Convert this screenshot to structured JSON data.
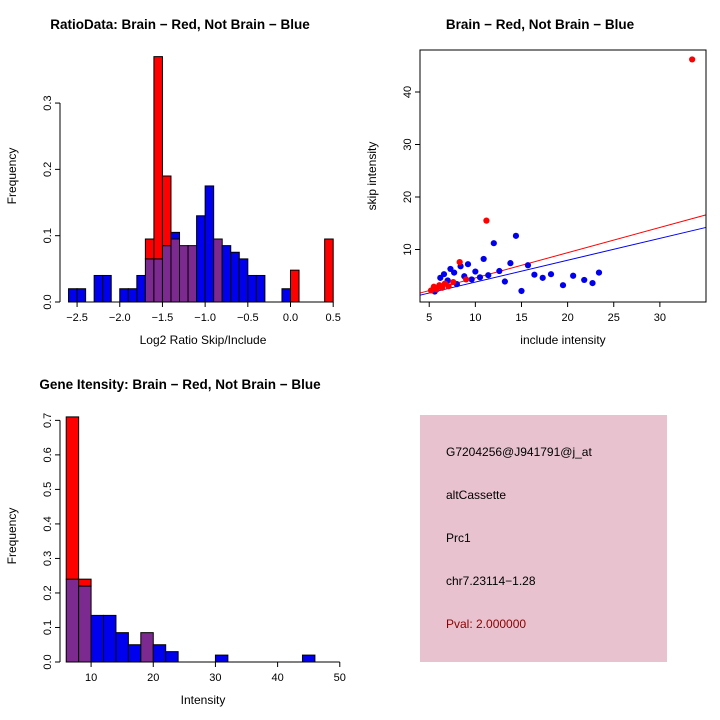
{
  "colors": {
    "red": "#FF0000",
    "blue": "#0000EE",
    "overlap": "#7D2A90",
    "axis": "#000000"
  },
  "chart_data": [
    {
      "id": "ratio-histogram",
      "type": "histogram",
      "title": "RatioData: Brain − Red, Not Brain − Blue",
      "xlabel": "Log2 Ratio Skip/Include",
      "ylabel": "Frequency",
      "xlim": [
        -2.7,
        0.65
      ],
      "ylim": [
        0,
        0.38
      ],
      "xticks": [
        -2.5,
        -2.0,
        -1.5,
        -1.0,
        -0.5,
        0.0,
        0.5
      ],
      "xtick_labels": [
        "−2.5",
        "−2.0",
        "−1.5",
        "−1.0",
        "−0.5",
        "0.0",
        "0.5"
      ],
      "yticks": [
        0.0,
        0.1,
        0.2,
        0.3
      ],
      "ytick_labels": [
        "0.0",
        "0.1",
        "0.2",
        "0.3"
      ],
      "bin_width": 0.1,
      "legend_note": "Brain = red, Not Brain = blue, overlap = purple",
      "series": [
        {
          "name": "Not Brain",
          "color": "blue",
          "bars": [
            [
              -2.6,
              0.02
            ],
            [
              -2.5,
              0.02
            ],
            [
              -2.3,
              0.04
            ],
            [
              -2.2,
              0.04
            ],
            [
              -2.0,
              0.02
            ],
            [
              -1.9,
              0.02
            ],
            [
              -1.8,
              0.04
            ],
            [
              -1.7,
              0.065
            ],
            [
              -1.6,
              0.065
            ],
            [
              -1.5,
              0.085
            ],
            [
              -1.4,
              0.105
            ],
            [
              -1.3,
              0.085
            ],
            [
              -1.2,
              0.085
            ],
            [
              -1.1,
              0.13
            ],
            [
              -1.0,
              0.175
            ],
            [
              -0.9,
              0.095
            ],
            [
              -0.8,
              0.085
            ],
            [
              -0.7,
              0.075
            ],
            [
              -0.6,
              0.065
            ],
            [
              -0.5,
              0.04
            ],
            [
              -0.4,
              0.04
            ],
            [
              -0.1,
              0.02
            ]
          ]
        },
        {
          "name": "Brain",
          "color": "red",
          "bars": [
            [
              -1.7,
              0.095
            ],
            [
              -1.6,
              0.37
            ],
            [
              -1.5,
              0.19
            ],
            [
              -1.4,
              0.095
            ],
            [
              -1.3,
              0.085
            ],
            [
              -1.2,
              0.085
            ],
            [
              -0.9,
              0.095
            ],
            [
              0.0,
              0.048
            ],
            [
              0.4,
              0.095
            ]
          ]
        }
      ]
    },
    {
      "id": "intensity-scatter",
      "type": "scatter",
      "title": "Brain − Red, Not Brain − Blue",
      "xlabel": "include intensity",
      "ylabel": "skip intensity",
      "xlim": [
        4,
        35
      ],
      "ylim": [
        0,
        48
      ],
      "xticks": [
        5,
        10,
        15,
        20,
        25,
        30
      ],
      "xtick_labels": [
        "5",
        "10",
        "15",
        "20",
        "25",
        "30"
      ],
      "yticks": [
        10,
        20,
        30,
        40
      ],
      "ytick_labels": [
        "10",
        "20",
        "30",
        "40"
      ],
      "boxed": true,
      "series": [
        {
          "name": "Not Brain",
          "color": "blue",
          "points": [
            [
              5.6,
              2.0
            ],
            [
              6.2,
              4.6
            ],
            [
              6.6,
              5.3
            ],
            [
              7.0,
              4.1
            ],
            [
              7.3,
              6.3
            ],
            [
              7.7,
              5.6
            ],
            [
              8.0,
              3.4
            ],
            [
              8.4,
              6.8
            ],
            [
              8.8,
              4.9
            ],
            [
              9.2,
              7.2
            ],
            [
              9.6,
              4.3
            ],
            [
              10.0,
              5.8
            ],
            [
              10.5,
              4.7
            ],
            [
              10.9,
              8.2
            ],
            [
              11.4,
              5.1
            ],
            [
              12.0,
              11.2
            ],
            [
              12.6,
              5.9
            ],
            [
              13.2,
              3.9
            ],
            [
              13.8,
              7.4
            ],
            [
              14.4,
              12.6
            ],
            [
              15.0,
              2.1
            ],
            [
              15.7,
              7.0
            ],
            [
              16.4,
              5.2
            ],
            [
              17.3,
              4.6
            ],
            [
              18.2,
              5.3
            ],
            [
              19.5,
              3.2
            ],
            [
              20.6,
              5.0
            ],
            [
              21.8,
              4.2
            ],
            [
              22.7,
              3.6
            ],
            [
              23.4,
              5.6
            ]
          ]
        },
        {
          "name": "Brain",
          "color": "red",
          "points": [
            [
              5.2,
              2.2
            ],
            [
              5.5,
              2.9
            ],
            [
              5.8,
              2.4
            ],
            [
              6.1,
              3.2
            ],
            [
              6.4,
              2.7
            ],
            [
              6.7,
              3.5
            ],
            [
              7.1,
              3.0
            ],
            [
              7.6,
              3.8
            ],
            [
              8.3,
              7.6
            ],
            [
              9.0,
              4.3
            ],
            [
              11.2,
              15.5
            ],
            [
              33.5,
              46.2
            ]
          ]
        }
      ],
      "fit_lines": [
        {
          "name": "brain-fit",
          "color": "red",
          "from": [
            4,
            1.7
          ],
          "to": [
            35,
            16.6
          ]
        },
        {
          "name": "notbrain-fit",
          "color": "blue",
          "from": [
            4,
            1.3
          ],
          "to": [
            35,
            14.2
          ]
        }
      ]
    },
    {
      "id": "gene-intensity-histogram",
      "type": "histogram",
      "title": "Gene Itensity: Brain − Red, Not Brain − Blue",
      "xlabel": "Intensity",
      "ylabel": "Frequency",
      "xlim": [
        5,
        51
      ],
      "ylim": [
        0,
        0.73
      ],
      "xticks": [
        10,
        20,
        30,
        40,
        50
      ],
      "xtick_labels": [
        "10",
        "20",
        "30",
        "40",
        "50"
      ],
      "yticks": [
        0.0,
        0.1,
        0.2,
        0.3,
        0.4,
        0.5,
        0.6,
        0.7
      ],
      "ytick_labels": [
        "0.0",
        "0.1",
        "0.2",
        "0.3",
        "0.4",
        "0.5",
        "0.6",
        "0.7"
      ],
      "bin_width": 2,
      "legend_note": "Brain = red, Not Brain = blue, overlap = purple",
      "series": [
        {
          "name": "Not Brain",
          "color": "blue",
          "bars": [
            [
              6,
              0.24
            ],
            [
              8,
              0.22
            ],
            [
              10,
              0.135
            ],
            [
              12,
              0.135
            ],
            [
              14,
              0.085
            ],
            [
              16,
              0.05
            ],
            [
              18,
              0.085
            ],
            [
              20,
              0.05
            ],
            [
              22,
              0.03
            ],
            [
              30,
              0.02
            ],
            [
              44,
              0.02
            ]
          ]
        },
        {
          "name": "Brain",
          "color": "red",
          "bars": [
            [
              6,
              0.71
            ],
            [
              8,
              0.24
            ],
            [
              18,
              0.085
            ]
          ]
        }
      ]
    }
  ],
  "info_box": {
    "bg": "#E8C3CF",
    "lines": [
      {
        "text": "G7204256@J941791@j_at",
        "color": "#000000"
      },
      {
        "text": "altCassette",
        "color": "#000000"
      },
      {
        "text": "Prc1",
        "color": "#000000"
      },
      {
        "text": "chr7.23114−1.28",
        "color": "#000000"
      },
      {
        "text": "Pval: 2.000000",
        "color": "#8B0000"
      }
    ]
  }
}
